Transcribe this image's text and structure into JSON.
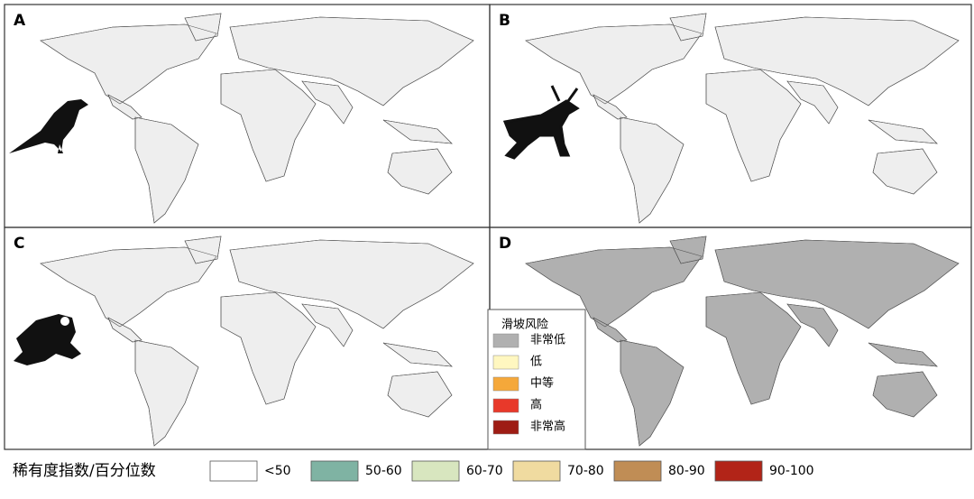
{
  "panels": [
    {
      "label": "A"
    },
    {
      "label": "B"
    },
    {
      "label": "C"
    },
    {
      "label": "D"
    }
  ],
  "landslide_legend": {
    "title": "滑坡风险",
    "items": [
      {
        "label": "非常低",
        "color": "#b0b0b0"
      },
      {
        "label": "低",
        "color": "#fff7c0"
      },
      {
        "label": "中等",
        "color": "#f5a83a"
      },
      {
        "label": "高",
        "color": "#e8392a"
      },
      {
        "label": "非常高",
        "color": "#9e1c14"
      }
    ]
  },
  "rarity_legend": {
    "title": "稀有度指数/百分位数",
    "items": [
      {
        "label": "<50",
        "color": "#ffffff"
      },
      {
        "label": "50-60",
        "color": "#7fb3a3"
      },
      {
        "label": "60-70",
        "color": "#d8e6bf"
      },
      {
        "label": "70-80",
        "color": "#f0dba0"
      },
      {
        "label": "80-90",
        "color": "#c08d55"
      },
      {
        "label": "90-100",
        "color": "#b22418"
      }
    ]
  }
}
